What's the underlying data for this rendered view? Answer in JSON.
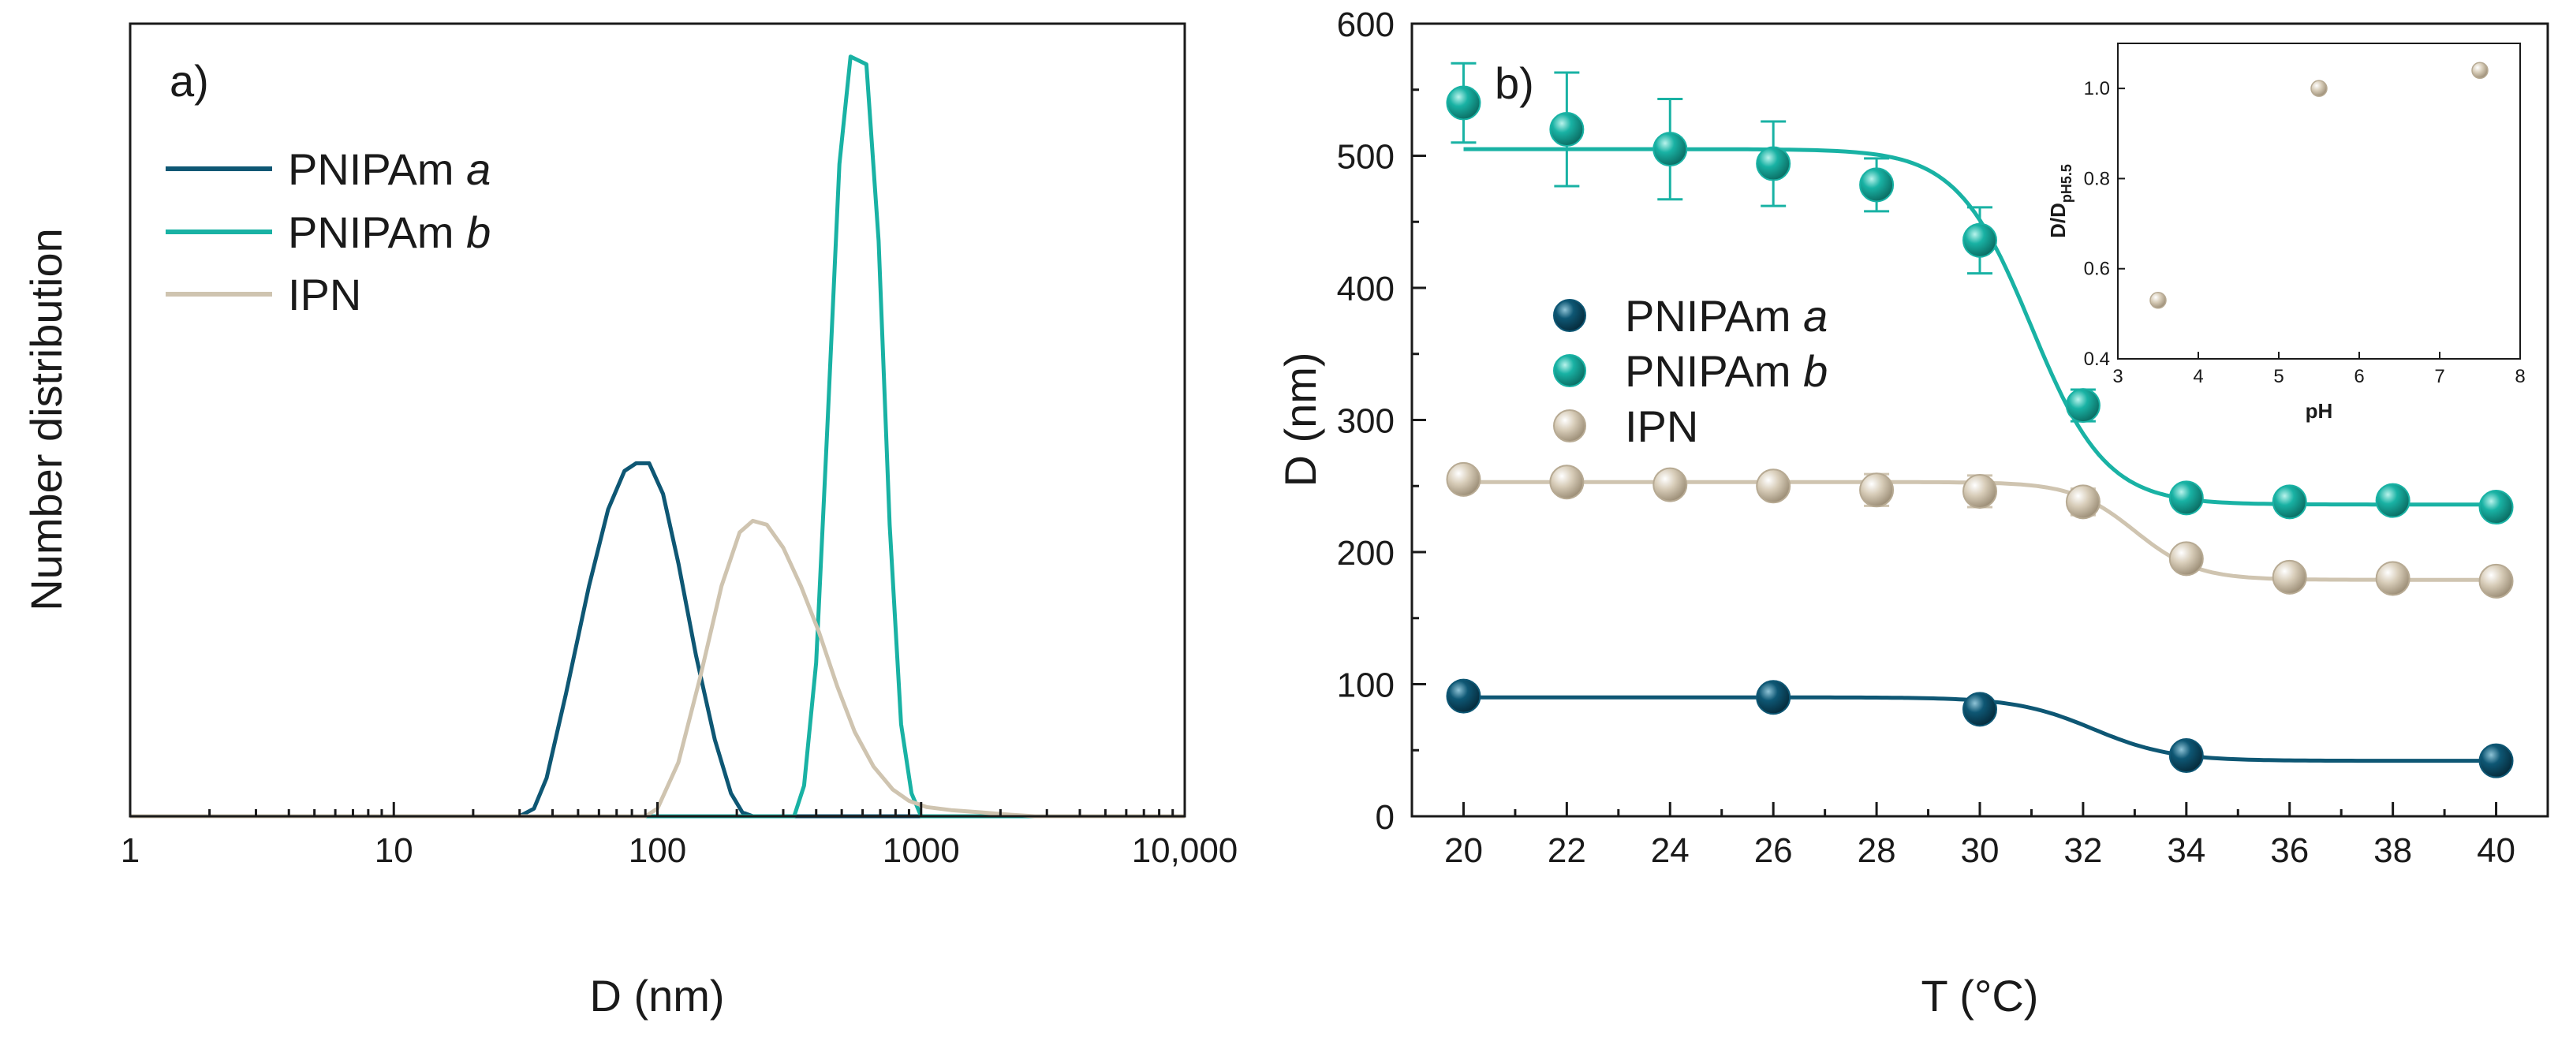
{
  "colors": {
    "pnipam_a": "#0e5774",
    "pnipam_b": "#19b2a4",
    "ipn": "#cfc4b0",
    "axis": "#1a1a1a"
  },
  "chart_data": [
    {
      "id": "a",
      "type": "line",
      "panel_label": "a)",
      "title": "",
      "xlabel": "D (nm)",
      "ylabel": "Number distribution",
      "xscale": "log",
      "xlim": [
        1,
        10000
      ],
      "ylim": [
        0,
        1.0
      ],
      "x_tick_labels": [
        "1",
        "10",
        "100",
        "1000",
        "10,000"
      ],
      "x_tick_values": [
        1,
        10,
        100,
        1000,
        10000
      ],
      "legend_position": "top-left",
      "series": [
        {
          "name": "PNIPAm",
          "name_suffix": "a",
          "color_key": "pnipam_a",
          "x": [
            1,
            30,
            34,
            38,
            45,
            55,
            65,
            75,
            83,
            93,
            105,
            120,
            140,
            165,
            190,
            210,
            230,
            10000
          ],
          "y": [
            0,
            0,
            0.01,
            0.05,
            0.16,
            0.3,
            0.4,
            0.45,
            0.46,
            0.46,
            0.42,
            0.33,
            0.21,
            0.1,
            0.03,
            0.005,
            0,
            0
          ]
        },
        {
          "name": "PNIPAm",
          "name_suffix": "b",
          "color_key": "pnipam_b",
          "x": [
            1,
            330,
            360,
            400,
            440,
            490,
            540,
            620,
            690,
            760,
            840,
            920,
            1000,
            10000
          ],
          "y": [
            0,
            0,
            0.04,
            0.2,
            0.5,
            0.85,
            0.99,
            0.98,
            0.75,
            0.38,
            0.12,
            0.03,
            0,
            0
          ]
        },
        {
          "name": "IPN",
          "name_suffix": "",
          "color_key": "ipn",
          "x": [
            1,
            90,
            100,
            120,
            145,
            175,
            205,
            230,
            260,
            300,
            350,
            410,
            480,
            560,
            660,
            780,
            900,
            1050,
            1300,
            1700,
            2200,
            2700,
            10000
          ],
          "y": [
            0,
            0,
            0.01,
            0.07,
            0.18,
            0.3,
            0.37,
            0.385,
            0.38,
            0.35,
            0.3,
            0.24,
            0.17,
            0.11,
            0.065,
            0.035,
            0.02,
            0.012,
            0.008,
            0.005,
            0.002,
            0,
            0
          ]
        }
      ]
    },
    {
      "id": "b",
      "type": "scatter",
      "panel_label": "b)",
      "title": "",
      "xlabel": "T (°C)",
      "ylabel": "D (nm)",
      "xlim": [
        19,
        41
      ],
      "ylim": [
        0,
        600
      ],
      "x_ticks": [
        20,
        22,
        24,
        26,
        28,
        30,
        32,
        34,
        36,
        38,
        40
      ],
      "y_ticks": [
        0,
        100,
        200,
        300,
        400,
        500,
        600
      ],
      "legend_position": "middle-left",
      "series": [
        {
          "name": "PNIPAm",
          "name_suffix": "a",
          "color_key": "pnipam_a",
          "x": [
            20,
            26,
            30,
            34,
            40
          ],
          "y": [
            91,
            90,
            81,
            46,
            42
          ],
          "err": [
            0,
            0,
            0,
            0,
            0
          ],
          "fit": {
            "top": 90,
            "bottom": 42,
            "mid": 32.2,
            "width": 0.75
          }
        },
        {
          "name": "PNIPAm",
          "name_suffix": "b",
          "color_key": "pnipam_b",
          "x": [
            20,
            22,
            24,
            26,
            28,
            30,
            32,
            34,
            36,
            38,
            40
          ],
          "y": [
            540,
            520,
            505,
            494,
            478,
            436,
            311,
            241,
            238,
            239,
            234
          ],
          "err": [
            30,
            43,
            38,
            32,
            20,
            25,
            12,
            7,
            5,
            4,
            8
          ],
          "fit": {
            "top": 505,
            "bottom": 236,
            "mid": 31.0,
            "width": 0.72
          }
        },
        {
          "name": "IPN",
          "name_suffix": "",
          "color_key": "ipn",
          "x": [
            20,
            22,
            24,
            26,
            28,
            30,
            32,
            34,
            36,
            38,
            40
          ],
          "y": [
            255,
            253,
            251,
            250,
            247,
            246,
            238,
            195,
            181,
            180,
            178
          ],
          "err": [
            0,
            0,
            0,
            6,
            12,
            12,
            10,
            0,
            0,
            0,
            0
          ],
          "fit": {
            "top": 253,
            "bottom": 179,
            "mid": 33.0,
            "width": 0.6
          }
        }
      ]
    },
    {
      "id": "inset",
      "type": "scatter",
      "xlabel": "pH",
      "ylabel_main": "D/D",
      "ylabel_sub": "pH5.5",
      "xlim": [
        3,
        8
      ],
      "ylim": [
        0.4,
        1.1
      ],
      "x_ticks": [
        3,
        4,
        5,
        6,
        7,
        8
      ],
      "y_ticks": [
        0.4,
        0.6,
        0.8,
        1.0
      ],
      "y_tick_labels": [
        "0.4",
        "0.6",
        "0.8",
        "1.0"
      ],
      "color_key": "ipn",
      "x": [
        3.5,
        5.5,
        7.5
      ],
      "y": [
        0.53,
        1.0,
        1.04
      ]
    }
  ]
}
